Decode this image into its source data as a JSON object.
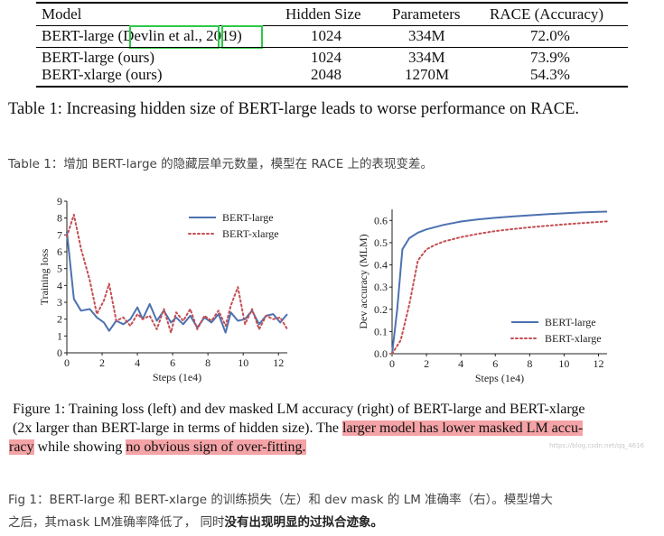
{
  "table": {
    "headers": [
      "Model",
      "Hidden Size",
      "Parameters",
      "RACE (Accuracy)"
    ],
    "rows": [
      {
        "model_prefix": "BERT-large (",
        "cite_author": "Devlin et al.",
        "cite_sep": ", ",
        "cite_year": "2019",
        "model_suffix": ")",
        "hidden": "1024",
        "params": "334M",
        "acc": "72.0%"
      },
      {
        "model": "BERT-large (ours)",
        "hidden": "1024",
        "params": "334M",
        "acc": "73.9%"
      },
      {
        "model": "BERT-xlarge (ours)",
        "hidden": "2048",
        "params": "1270M",
        "acc": "54.3%"
      }
    ]
  },
  "table_caption_en": "Table 1: Increasing hidden size of BERT-large leads to worse performance on RACE.",
  "table_caption_cn": "Table 1：增加 BERT-large 的隐藏层单元数量，模型在 RACE 上的表现变差。",
  "chart_data": [
    {
      "type": "line",
      "xlabel": "Steps (1e4)",
      "ylabel": "Training loss",
      "xlim": [
        0,
        12.5
      ],
      "ylim": [
        0,
        9
      ],
      "xticks": [
        "0",
        "2",
        "4",
        "6",
        "8",
        "10",
        "12"
      ],
      "yticks": [
        "0",
        "1",
        "2",
        "3",
        "4",
        "5",
        "6",
        "7",
        "8",
        "9"
      ],
      "legend_position": "top-right",
      "series": [
        {
          "name": "BERT-large",
          "style": "solid",
          "color": "#4c72b0",
          "x": [
            0,
            0.4,
            0.8,
            1.3,
            1.7,
            2.1,
            2.4,
            2.8,
            3.2,
            3.6,
            4.0,
            4.3,
            4.7,
            5.1,
            5.5,
            5.9,
            6.2,
            6.6,
            7.0,
            7.4,
            7.8,
            8.2,
            8.6,
            9.0,
            9.3,
            9.7,
            10.1,
            10.5,
            10.9,
            11.3,
            11.7,
            12.1,
            12.5
          ],
          "y": [
            7.2,
            3.2,
            2.5,
            2.6,
            2.1,
            1.8,
            1.3,
            1.9,
            1.7,
            2.0,
            2.7,
            2.0,
            2.9,
            1.9,
            2.5,
            1.8,
            2.1,
            1.7,
            2.2,
            1.5,
            2.1,
            1.8,
            2.3,
            1.2,
            2.4,
            1.9,
            2.0,
            2.5,
            1.7,
            2.2,
            2.3,
            1.8,
            2.3
          ]
        },
        {
          "name": "BERT-xlarge",
          "style": "dotted",
          "color": "#c44e52",
          "x": [
            0,
            0.4,
            0.8,
            1.3,
            1.7,
            2.1,
            2.4,
            2.8,
            3.2,
            3.6,
            4.0,
            4.3,
            4.7,
            5.1,
            5.5,
            5.9,
            6.2,
            6.6,
            7.0,
            7.4,
            7.8,
            8.2,
            8.6,
            9.0,
            9.3,
            9.7,
            10.1,
            10.5,
            10.9,
            11.3,
            11.7,
            12.1,
            12.5
          ],
          "y": [
            6.9,
            8.2,
            6.2,
            4.3,
            2.3,
            3.1,
            4.1,
            1.9,
            2.1,
            1.6,
            2.3,
            2.0,
            2.2,
            1.4,
            2.6,
            1.2,
            2.4,
            1.9,
            2.6,
            1.4,
            2.2,
            1.9,
            2.5,
            1.6,
            2.8,
            3.9,
            1.7,
            2.6,
            1.4,
            2.2,
            2.0,
            2.1,
            1.4
          ]
        }
      ]
    },
    {
      "type": "line",
      "xlabel": "Steps (1e4)",
      "ylabel": "Dev accuracy (MLM)",
      "xlim": [
        0,
        12.5
      ],
      "ylim": [
        0,
        0.65
      ],
      "xticks": [
        "0",
        "2",
        "4",
        "6",
        "8",
        "10",
        "12"
      ],
      "yticks": [
        "0.0",
        "0.1",
        "0.2",
        "0.3",
        "0.4",
        "0.5",
        "0.6"
      ],
      "legend_position": "lower-right",
      "series": [
        {
          "name": "BERT-large",
          "style": "solid",
          "color": "#4c72b0",
          "x": [
            0,
            0.3,
            0.6,
            1.0,
            1.5,
            2.0,
            3.0,
            4.0,
            5.0,
            6.0,
            7.0,
            8.0,
            9.0,
            10.0,
            11.0,
            12.0,
            12.5
          ],
          "y": [
            0.0,
            0.2,
            0.47,
            0.52,
            0.545,
            0.56,
            0.58,
            0.595,
            0.605,
            0.612,
            0.618,
            0.623,
            0.628,
            0.632,
            0.636,
            0.639,
            0.64
          ]
        },
        {
          "name": "BERT-xlarge",
          "style": "dotted",
          "color": "#c44e52",
          "x": [
            0,
            0.5,
            1.0,
            1.5,
            2.0,
            2.5,
            3.0,
            4.0,
            5.0,
            6.0,
            7.0,
            8.0,
            9.0,
            10.0,
            11.0,
            12.0,
            12.5
          ],
          "y": [
            0.0,
            0.06,
            0.22,
            0.42,
            0.47,
            0.49,
            0.505,
            0.525,
            0.54,
            0.552,
            0.561,
            0.569,
            0.576,
            0.582,
            0.588,
            0.593,
            0.596
          ]
        }
      ]
    }
  ],
  "figure_caption": {
    "line1": "Figure 1: Training loss (left) and dev masked LM accuracy (right) of BERT-large and BERT-xlarge",
    "line2_plain": "(2x larger than BERT-large in terms of hidden size). The ",
    "line2_highlight": "larger model has lower masked LM accu-",
    "line3_highlight1": "racy",
    "line3_plain": " while showing ",
    "line3_highlight2": "no obvious sign of over-fitting."
  },
  "watermark": "https://blog.csdn.net/qq_4616",
  "fig_caption_cn": {
    "line1": "Fig 1：BERT-large 和 BERT-xlarge 的训练损失（左）和 dev mask 的 LM 准确率（右）。模型增大",
    "line2_plain": "之后，其mask LM准确率降低了， 同时",
    "line2_bold": "没有出现明显的过拟合迹象。"
  }
}
